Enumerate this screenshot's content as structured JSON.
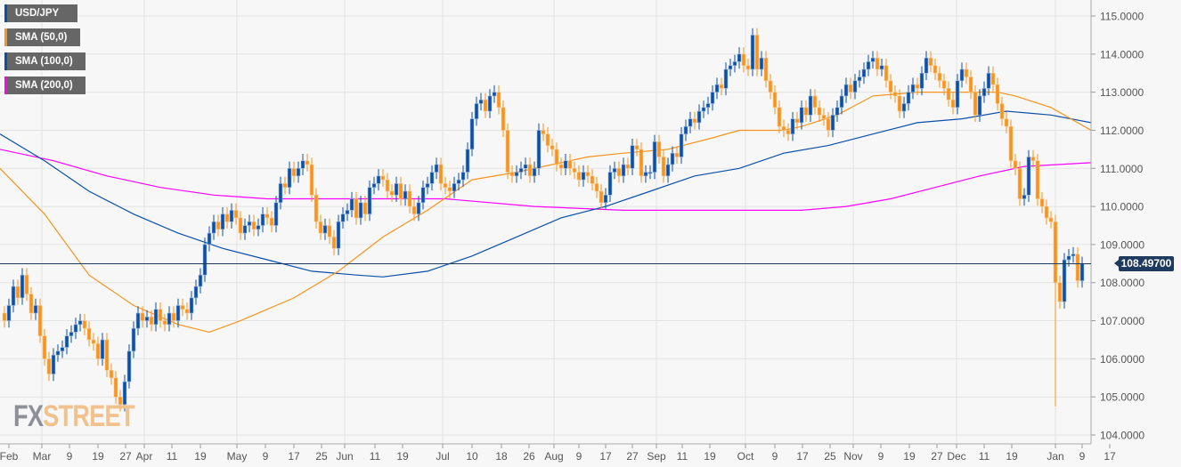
{
  "legend": [
    {
      "label": "USD/JPY",
      "color": "#0a4fa8"
    },
    {
      "label": "SMA (50,0)",
      "color": "#f7931e"
    },
    {
      "label": "SMA (100,0)",
      "color": "#0a4fa8"
    },
    {
      "label": "SMA (200,0)",
      "color": "#ff00ff"
    }
  ],
  "logo": {
    "fx": "FX",
    "street": "STREET"
  },
  "current_price": {
    "label": "108.49700",
    "value": 108.497
  },
  "chart_data": {
    "type": "candlestick",
    "title": "USD/JPY",
    "ylim": [
      104,
      115
    ],
    "y_ticks": [
      "104.0000",
      "105.0000",
      "106.0000",
      "107.0000",
      "108.0000",
      "109.0000",
      "110.0000",
      "111.0000",
      "112.0000",
      "113.0000",
      "114.0000",
      "115.0000"
    ],
    "colors": {
      "up": "#0a4fa8",
      "down": "#f7931e",
      "sma50": "#f7931e",
      "sma100": "#0a4fa8",
      "sma200": "#ff00ff",
      "price_line": "#1f3a5f"
    },
    "first_open": 107.2,
    "wick": 0.18,
    "low_overrides": {
      "236": 104.75
    },
    "closes": [
      107.0,
      107.4,
      107.9,
      107.6,
      108.2,
      107.7,
      107.2,
      107.4,
      106.6,
      106.0,
      105.6,
      106.1,
      106.2,
      106.3,
      106.6,
      106.7,
      106.9,
      107.0,
      106.8,
      106.5,
      106.4,
      106.0,
      106.5,
      105.7,
      105.5,
      105.0,
      104.8,
      105.4,
      106.2,
      106.8,
      107.2,
      107.0,
      107.1,
      106.9,
      107.3,
      107.0,
      106.9,
      107.2,
      107.0,
      107.4,
      107.3,
      107.2,
      107.6,
      107.9,
      108.2,
      109.0,
      109.3,
      109.6,
      109.4,
      109.8,
      109.6,
      109.9,
      109.7,
      109.3,
      109.5,
      109.6,
      109.4,
      109.5,
      109.8,
      109.7,
      109.5,
      110.1,
      110.6,
      110.5,
      111.0,
      110.8,
      111.0,
      111.2,
      111.1,
      110.3,
      109.6,
      109.3,
      109.5,
      109.2,
      108.9,
      109.6,
      109.8,
      109.9,
      110.2,
      109.7,
      110.1,
      109.8,
      110.5,
      110.6,
      110.8,
      110.7,
      110.4,
      110.3,
      110.6,
      110.2,
      110.4,
      110.0,
      109.8,
      110.1,
      110.5,
      110.6,
      110.9,
      111.1,
      110.6,
      110.5,
      110.4,
      110.6,
      110.7,
      110.9,
      111.5,
      112.3,
      112.7,
      112.8,
      112.5,
      112.9,
      113.0,
      112.6,
      112.0,
      110.9,
      110.8,
      110.9,
      111.0,
      111.1,
      110.8,
      111.0,
      112.0,
      111.9,
      111.6,
      111.5,
      111.1,
      111.0,
      111.2,
      111.0,
      110.9,
      110.7,
      110.9,
      110.8,
      110.6,
      110.4,
      110.1,
      110.3,
      110.9,
      111.0,
      110.8,
      111.1,
      111.0,
      111.6,
      111.5,
      110.8,
      110.9,
      110.9,
      111.7,
      111.3,
      110.8,
      111.1,
      111.4,
      111.3,
      111.9,
      112.1,
      112.3,
      112.2,
      112.5,
      112.6,
      112.7,
      113.0,
      113.2,
      113.1,
      113.6,
      113.7,
      113.8,
      114.0,
      113.7,
      113.6,
      114.5,
      113.6,
      113.9,
      113.3,
      113.0,
      112.6,
      112.1,
      112.0,
      111.9,
      112.3,
      112.2,
      112.6,
      112.4,
      112.9,
      112.6,
      112.4,
      112.3,
      112.0,
      112.4,
      112.6,
      112.9,
      113.2,
      113.0,
      113.3,
      113.4,
      113.6,
      113.8,
      113.9,
      113.6,
      113.7,
      113.3,
      113.0,
      112.9,
      112.5,
      112.7,
      113.0,
      113.2,
      113.1,
      113.5,
      113.9,
      113.7,
      113.5,
      113.3,
      113.1,
      112.8,
      112.6,
      113.3,
      113.6,
      113.4,
      113.0,
      112.4,
      112.9,
      113.1,
      113.5,
      113.2,
      112.7,
      112.3,
      112.1,
      111.2,
      111.0,
      110.2,
      110.3,
      111.3,
      111.2,
      110.2,
      110.0,
      109.7,
      109.6,
      108.0,
      107.5,
      108.6,
      108.7,
      108.75,
      108.05,
      108.5
    ],
    "sma50": [
      [
        -1,
        111.0
      ],
      [
        9,
        109.8
      ],
      [
        19,
        108.2
      ],
      [
        29,
        107.4
      ],
      [
        39,
        106.9
      ],
      [
        46,
        106.7
      ],
      [
        53,
        107.0
      ],
      [
        65,
        107.6
      ],
      [
        75,
        108.3
      ],
      [
        85,
        109.2
      ],
      [
        95,
        109.9
      ],
      [
        105,
        110.7
      ],
      [
        115,
        110.9
      ],
      [
        123,
        111.1
      ],
      [
        131,
        111.3
      ],
      [
        139,
        111.4
      ],
      [
        149,
        111.5
      ],
      [
        159,
        111.8
      ],
      [
        165,
        112.0
      ],
      [
        175,
        112.0
      ],
      [
        179,
        112.1
      ],
      [
        187,
        112.4
      ],
      [
        195,
        112.9
      ],
      [
        205,
        113.0
      ],
      [
        215,
        113.0
      ],
      [
        223,
        113.0
      ],
      [
        227,
        112.9
      ],
      [
        235,
        112.6
      ],
      [
        244,
        112.0
      ]
    ],
    "sma100": [
      [
        -1,
        111.9
      ],
      [
        9,
        111.2
      ],
      [
        19,
        110.4
      ],
      [
        29,
        109.8
      ],
      [
        39,
        109.3
      ],
      [
        49,
        108.9
      ],
      [
        59,
        108.6
      ],
      [
        69,
        108.3
      ],
      [
        79,
        108.2
      ],
      [
        85,
        108.15
      ],
      [
        95,
        108.3
      ],
      [
        105,
        108.7
      ],
      [
        115,
        109.2
      ],
      [
        125,
        109.7
      ],
      [
        135,
        110.0
      ],
      [
        145,
        110.4
      ],
      [
        155,
        110.8
      ],
      [
        165,
        111.0
      ],
      [
        175,
        111.4
      ],
      [
        185,
        111.6
      ],
      [
        195,
        111.9
      ],
      [
        205,
        112.2
      ],
      [
        215,
        112.3
      ],
      [
        225,
        112.5
      ],
      [
        235,
        112.4
      ],
      [
        244,
        112.2
      ]
    ],
    "sma200": [
      [
        -1,
        111.5
      ],
      [
        11,
        111.2
      ],
      [
        23,
        110.8
      ],
      [
        35,
        110.5
      ],
      [
        47,
        110.3
      ],
      [
        59,
        110.2
      ],
      [
        79,
        110.2
      ],
      [
        99,
        110.2
      ],
      [
        119,
        110.0
      ],
      [
        139,
        109.9
      ],
      [
        159,
        109.9
      ],
      [
        179,
        109.9
      ],
      [
        189,
        110.0
      ],
      [
        199,
        110.2
      ],
      [
        209,
        110.5
      ],
      [
        219,
        110.8
      ],
      [
        229,
        111.05
      ],
      [
        244,
        111.15
      ]
    ],
    "x_ticks": [
      {
        "label": "Feb",
        "i": 1,
        "month": false
      },
      {
        "label": "Mar",
        "i": 8.4,
        "month": true
      },
      {
        "label": "9",
        "i": 14.6
      },
      {
        "label": "19",
        "i": 21
      },
      {
        "label": "27",
        "i": 27.2
      },
      {
        "label": "Apr",
        "i": 31.4,
        "month": true
      },
      {
        "label": "11",
        "i": 37.6
      },
      {
        "label": "19",
        "i": 44
      },
      {
        "label": "May",
        "i": 52.2,
        "month": true
      },
      {
        "label": "9",
        "i": 58.6
      },
      {
        "label": "17",
        "i": 65
      },
      {
        "label": "25",
        "i": 71.2
      },
      {
        "label": "Jun",
        "i": 76.4,
        "month": true
      },
      {
        "label": "11",
        "i": 83.2
      },
      {
        "label": "19",
        "i": 89.4
      },
      {
        "label": "Jul",
        "i": 98.4,
        "month": true
      },
      {
        "label": "10",
        "i": 105
      },
      {
        "label": "18",
        "i": 111.6
      },
      {
        "label": "26",
        "i": 117.8
      },
      {
        "label": "Aug",
        "i": 123.4,
        "month": true
      },
      {
        "label": "9",
        "i": 129
      },
      {
        "label": "17",
        "i": 135
      },
      {
        "label": "27",
        "i": 141
      },
      {
        "label": "Sep",
        "i": 146.4,
        "month": true
      },
      {
        "label": "11",
        "i": 152.2
      },
      {
        "label": "19",
        "i": 158.4
      },
      {
        "label": "Oct",
        "i": 166.4,
        "month": true
      },
      {
        "label": "9",
        "i": 173
      },
      {
        "label": "17",
        "i": 179.2
      },
      {
        "label": "25",
        "i": 185.4
      },
      {
        "label": "Nov",
        "i": 190.6,
        "month": true
      },
      {
        "label": "9",
        "i": 196.8
      },
      {
        "label": "19",
        "i": 203.2
      },
      {
        "label": "27",
        "i": 209.4
      },
      {
        "label": "Dec",
        "i": 213.8,
        "month": true
      },
      {
        "label": "11",
        "i": 220
      },
      {
        "label": "19",
        "i": 226.2
      },
      {
        "label": "Jan",
        "i": 236,
        "month": true
      },
      {
        "label": "9",
        "i": 242
      },
      {
        "label": "17",
        "i": 248.2
      }
    ]
  }
}
